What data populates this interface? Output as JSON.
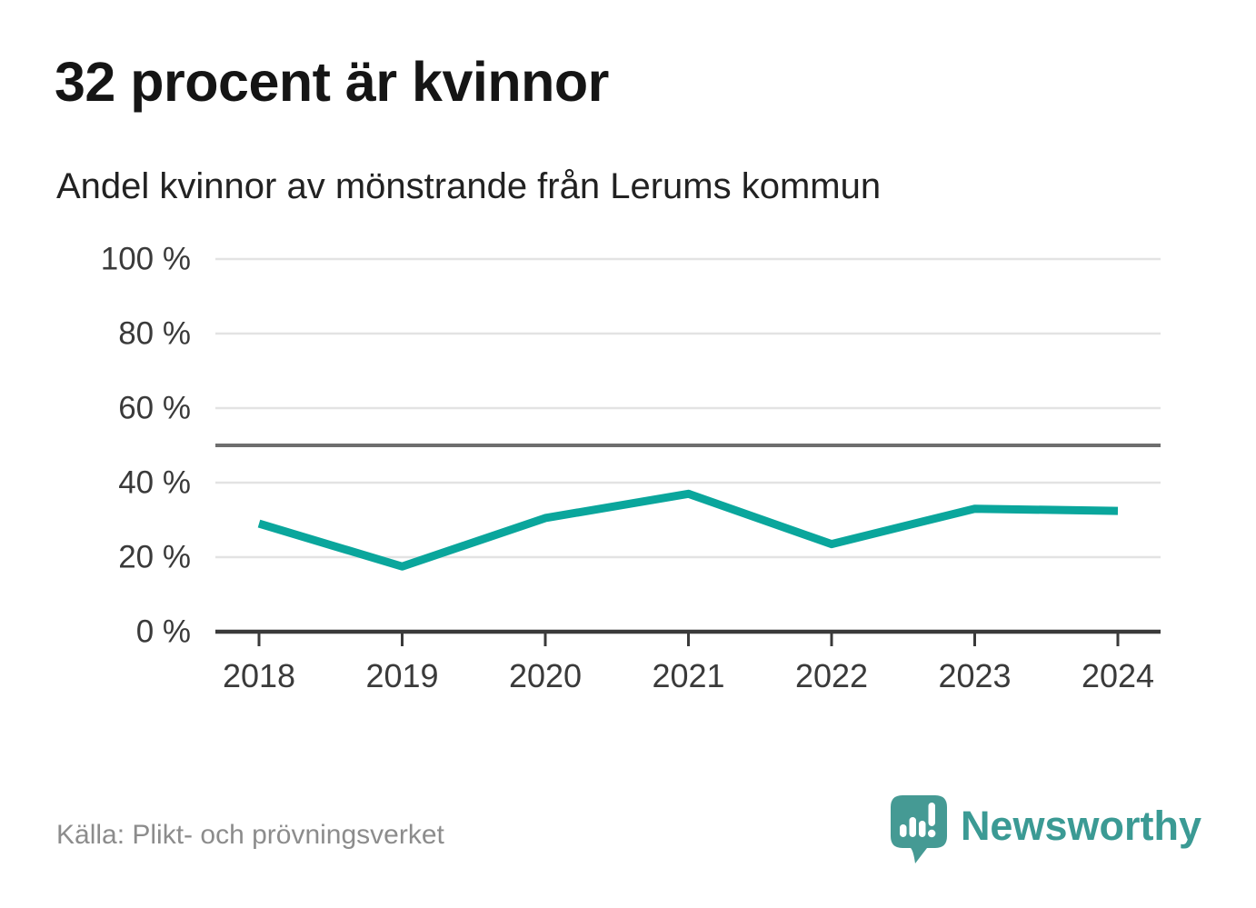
{
  "header": {
    "title": "32 procent är kvinnor",
    "subtitle": "Andel kvinnor av mönstrande från Lerums kommun"
  },
  "chart_data": {
    "type": "line",
    "title": "32 procent är kvinnor",
    "subtitle": "Andel kvinnor av mönstrande från Lerums kommun",
    "x": [
      "2018",
      "2019",
      "2020",
      "2021",
      "2022",
      "2023",
      "2024"
    ],
    "series": [
      {
        "name": "Andel kvinnor av mönstrande",
        "values": [
          29,
          17.5,
          30.5,
          37,
          23.5,
          33,
          32.4
        ]
      }
    ],
    "xlabel": "",
    "ylabel": "",
    "ylim": [
      0,
      100
    ],
    "yticks": [
      0,
      20,
      40,
      60,
      80,
      100
    ],
    "ytick_suffix": " %",
    "reference_line": 50,
    "grid": true,
    "legend": "none"
  },
  "footer": {
    "source": "Källa: Plikt- och prövningsverket",
    "logo_text": "Newsworthy"
  },
  "colors": {
    "line": "#0aa69c",
    "grid": "#e3e3e3",
    "reference": "#6e6e6e",
    "axis": "#3a3a3a",
    "tick_label": "#3a3a3a",
    "title": "#151515",
    "subtitle": "#222222",
    "source": "#8c8c8c",
    "logo": "#3b9a94"
  }
}
